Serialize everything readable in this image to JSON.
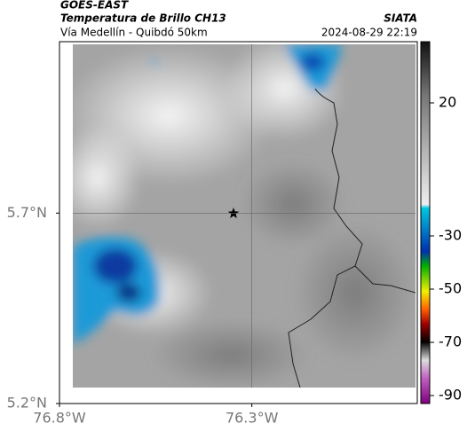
{
  "header": {
    "satellite": "GOES-EAST",
    "title": "Temperatura de Brillo CH13",
    "source": "SIATA",
    "route": "Vía Medellín - Quibdó 50km",
    "datetime": "2024-08-29 22:19"
  },
  "map": {
    "latlim": [
      5.2,
      6.15
    ],
    "lonlim": [
      -76.8,
      -75.87
    ],
    "latticks": [
      {
        "value": 5.7,
        "label": "5.7°N"
      },
      {
        "value": 5.2,
        "label": "5.2°N"
      }
    ],
    "lonticks": [
      {
        "value": -76.8,
        "label": "76.8°W"
      },
      {
        "value": -76.3,
        "label": "76.3°W"
      }
    ],
    "gridlines": {
      "lat": 5.7,
      "lon": -76.3
    }
  },
  "colorbar": {
    "lim": [
      -93,
      43
    ],
    "ticks": [
      20,
      -30,
      -50,
      -70,
      -90
    ]
  }
}
